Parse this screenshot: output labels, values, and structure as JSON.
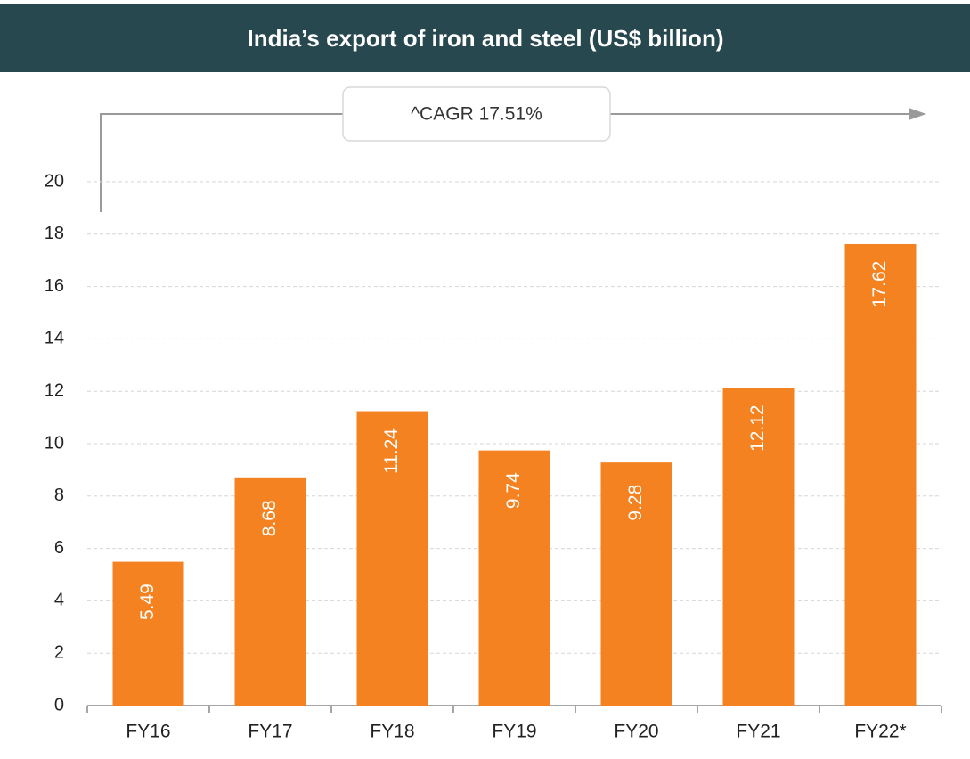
{
  "chart_data": {
    "type": "bar",
    "title": "India’s export of iron and steel (US$ billion)",
    "annotation": "^CAGR 17.51%",
    "categories": [
      "FY16",
      "FY17",
      "FY18",
      "FY19",
      "FY20",
      "FY21",
      "FY22*"
    ],
    "values": [
      5.49,
      8.68,
      11.24,
      9.74,
      9.28,
      12.12,
      17.62
    ],
    "color": "#f58220",
    "ylim": [
      0,
      20
    ],
    "yticks": [
      0,
      2,
      4,
      6,
      8,
      10,
      12,
      14,
      16,
      18,
      20
    ],
    "grid": true
  }
}
